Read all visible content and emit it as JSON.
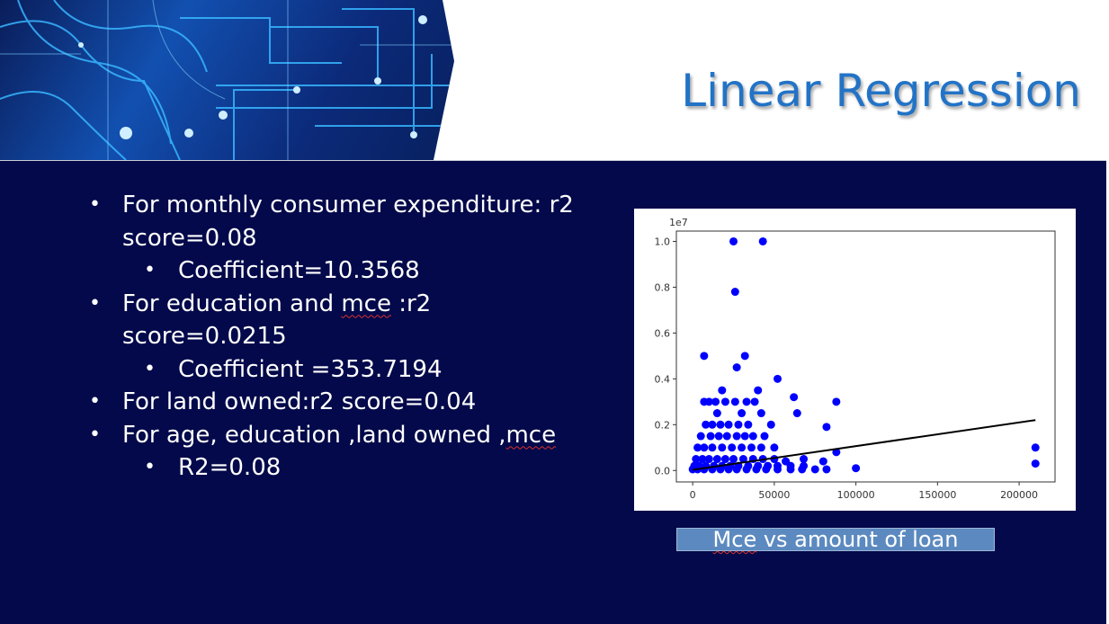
{
  "slide": {
    "title": "Linear Regression",
    "bullets": [
      {
        "level": 1,
        "parts": [
          {
            "text": "For monthly consumer expenditure: r2 score=0.08"
          }
        ]
      },
      {
        "level": 2,
        "parts": [
          {
            "text": "Coefficient=10.3568"
          }
        ]
      },
      {
        "level": 1,
        "parts": [
          {
            "text": "For education and "
          },
          {
            "text": "mce",
            "squiggle": true
          },
          {
            "text": " :r2 score=0.0215"
          }
        ]
      },
      {
        "level": 2,
        "parts": [
          {
            "text": "Coefficient =353.7194"
          }
        ]
      },
      {
        "level": 1,
        "parts": [
          {
            "text": "For land owned:r2 score=0.04"
          }
        ]
      },
      {
        "level": 1,
        "parts": [
          {
            "text": "For age, education ,land owned ,"
          },
          {
            "text": "mce",
            "squiggle": true
          }
        ]
      },
      {
        "level": 2,
        "parts": [
          {
            "text": "R2=0.08"
          }
        ]
      }
    ],
    "caption": {
      "word": "Mce",
      "rest": " vs amount of loan"
    }
  },
  "chart_data": {
    "type": "scatter",
    "title": "",
    "xlabel": "",
    "ylabel": "",
    "offset_label": "1e7",
    "xlim": [
      -10000,
      222000
    ],
    "ylim": [
      -0.05,
      1.045
    ],
    "xticks": [
      0,
      50000,
      100000,
      150000,
      200000
    ],
    "yticks": [
      0.0,
      0.2,
      0.4,
      0.6,
      0.8,
      1.0
    ],
    "grid": false,
    "point_color": "#0000ff",
    "line_color": "#000000",
    "series": [
      {
        "kind": "points",
        "points": [
          [
            25000,
            1.0
          ],
          [
            43000,
            1.0
          ],
          [
            26000,
            0.78
          ],
          [
            7000,
            0.5
          ],
          [
            32000,
            0.5
          ],
          [
            27000,
            0.45
          ],
          [
            52000,
            0.4
          ],
          [
            18000,
            0.35
          ],
          [
            40000,
            0.35
          ],
          [
            62000,
            0.32
          ],
          [
            33000,
            0.3
          ],
          [
            88000,
            0.3
          ],
          [
            7000,
            0.3
          ],
          [
            10000,
            0.3
          ],
          [
            14000,
            0.3
          ],
          [
            20000,
            0.3
          ],
          [
            26000,
            0.3
          ],
          [
            38000,
            0.3
          ],
          [
            64000,
            0.25
          ],
          [
            15000,
            0.25
          ],
          [
            30000,
            0.25
          ],
          [
            42000,
            0.25
          ],
          [
            82000,
            0.19
          ],
          [
            48000,
            0.2
          ],
          [
            8000,
            0.2
          ],
          [
            12000,
            0.2
          ],
          [
            17000,
            0.2
          ],
          [
            22000,
            0.2
          ],
          [
            28000,
            0.2
          ],
          [
            34000,
            0.2
          ],
          [
            5000,
            0.15
          ],
          [
            11000,
            0.15
          ],
          [
            16000,
            0.15
          ],
          [
            21000,
            0.15
          ],
          [
            27000,
            0.15
          ],
          [
            32000,
            0.15
          ],
          [
            37000,
            0.15
          ],
          [
            44000,
            0.15
          ],
          [
            3000,
            0.1
          ],
          [
            7000,
            0.1
          ],
          [
            12000,
            0.1
          ],
          [
            18000,
            0.1
          ],
          [
            24000,
            0.1
          ],
          [
            30000,
            0.1
          ],
          [
            36000,
            0.1
          ],
          [
            42000,
            0.1
          ],
          [
            50000,
            0.1
          ],
          [
            88000,
            0.08
          ],
          [
            210000,
            0.1
          ],
          [
            2000,
            0.05
          ],
          [
            6000,
            0.05
          ],
          [
            10000,
            0.05
          ],
          [
            15000,
            0.05
          ],
          [
            20000,
            0.05
          ],
          [
            25000,
            0.05
          ],
          [
            31000,
            0.05
          ],
          [
            37000,
            0.05
          ],
          [
            43000,
            0.05
          ],
          [
            50000,
            0.05
          ],
          [
            57000,
            0.04
          ],
          [
            68000,
            0.05
          ],
          [
            80000,
            0.04
          ],
          [
            1000,
            0.02
          ],
          [
            4000,
            0.02
          ],
          [
            8000,
            0.02
          ],
          [
            13000,
            0.02
          ],
          [
            18000,
            0.02
          ],
          [
            23000,
            0.02
          ],
          [
            28000,
            0.02
          ],
          [
            34000,
            0.02
          ],
          [
            40000,
            0.02
          ],
          [
            46000,
            0.02
          ],
          [
            52000,
            0.02
          ],
          [
            60000,
            0.02
          ],
          [
            68000,
            0.02
          ],
          [
            210000,
            0.03
          ],
          [
            0,
            0.005
          ],
          [
            3000,
            0.005
          ],
          [
            7000,
            0.005
          ],
          [
            12000,
            0.005
          ],
          [
            17000,
            0.005
          ],
          [
            22000,
            0.005
          ],
          [
            27000,
            0.005
          ],
          [
            33000,
            0.005
          ],
          [
            39000,
            0.005
          ],
          [
            45000,
            0.005
          ],
          [
            52000,
            0.005
          ],
          [
            60000,
            0.005
          ],
          [
            67000,
            0.005
          ],
          [
            75000,
            0.005
          ],
          [
            82000,
            0.005
          ],
          [
            100000,
            0.01
          ]
        ]
      },
      {
        "kind": "line",
        "x": [
          0,
          210000
        ],
        "y": [
          0.003,
          0.22
        ]
      }
    ]
  }
}
